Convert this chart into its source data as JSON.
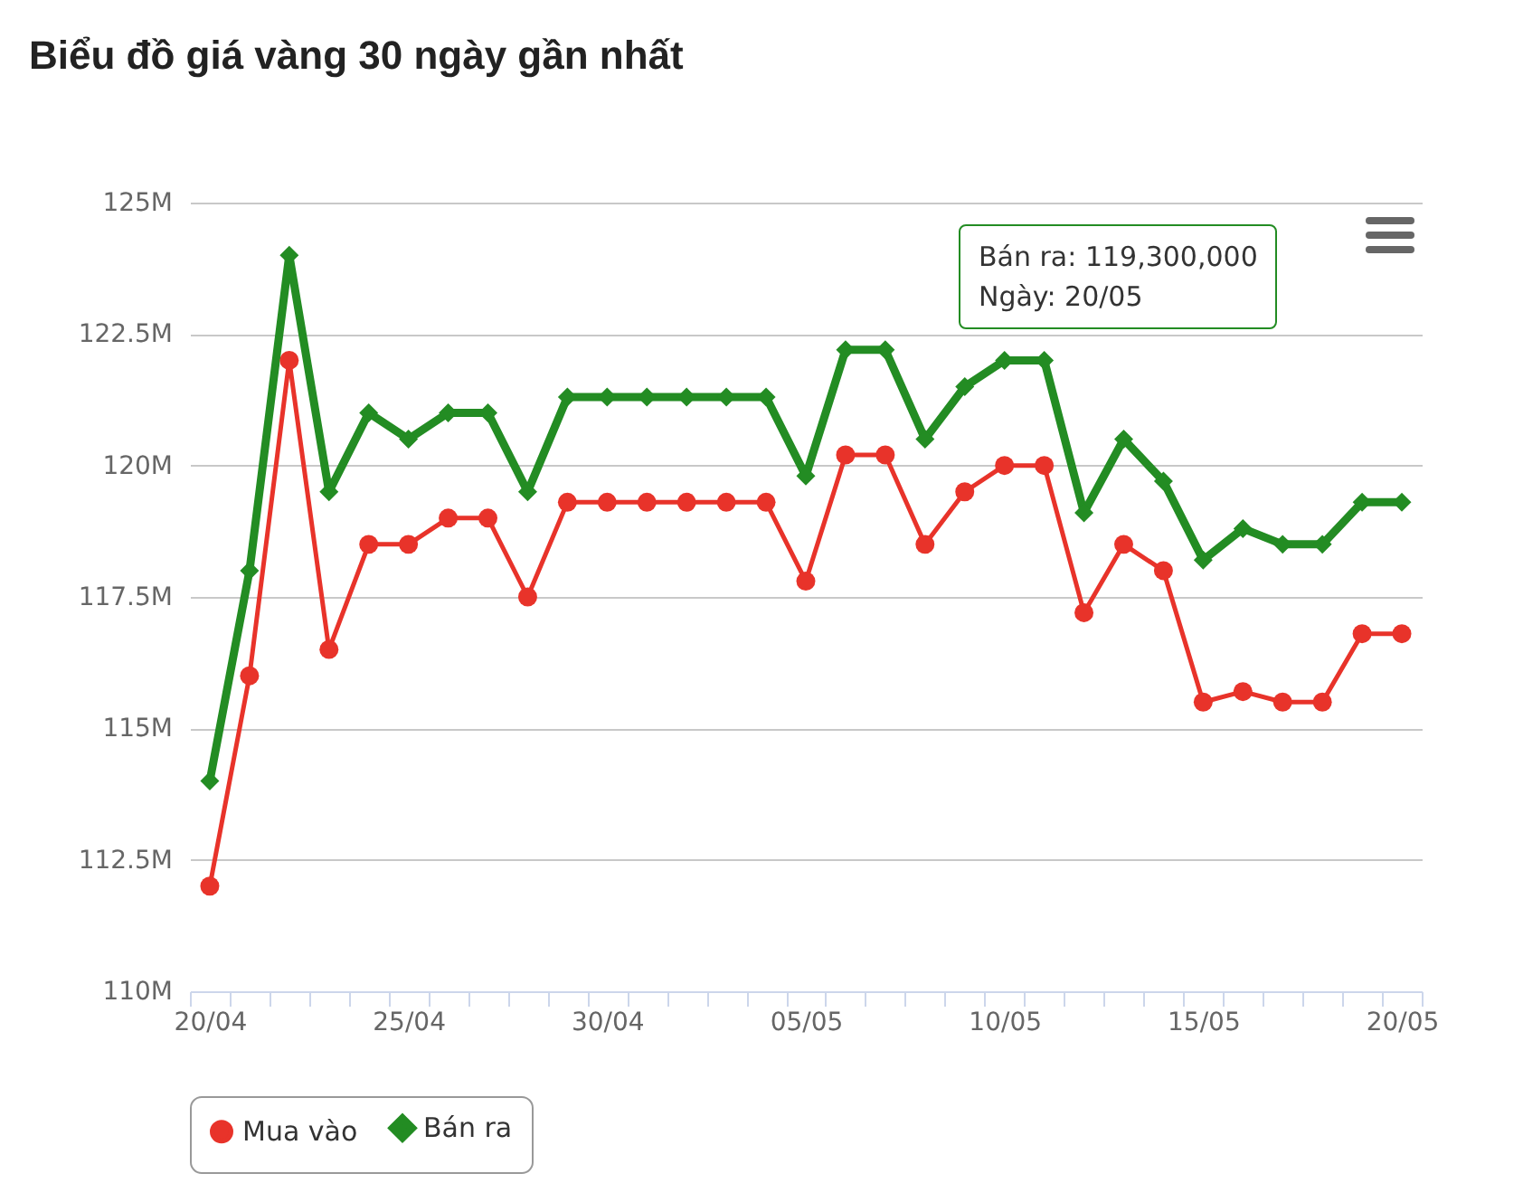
{
  "chart_data": {
    "type": "line",
    "title": "Biểu đồ giá vàng 30 ngày gần nhất",
    "categories": [
      "20/04",
      null,
      null,
      null,
      null,
      "25/04",
      null,
      null,
      null,
      null,
      "30/04",
      null,
      null,
      null,
      null,
      "05/05",
      null,
      null,
      null,
      null,
      "10/05",
      null,
      null,
      null,
      null,
      "15/05",
      null,
      null,
      null,
      null,
      "20/05"
    ],
    "series": [
      {
        "name": "Mua vào",
        "color": "#e8332a",
        "marker": "circle",
        "values": [
          112.0,
          116.0,
          122.0,
          116.5,
          118.5,
          118.5,
          119.0,
          119.0,
          117.5,
          119.3,
          119.3,
          119.3,
          119.3,
          119.3,
          119.3,
          117.8,
          120.2,
          120.2,
          118.5,
          119.5,
          120.0,
          120.0,
          117.2,
          118.5,
          118.0,
          115.5,
          115.7,
          115.5,
          115.5,
          116.8,
          116.8
        ]
      },
      {
        "name": "Bán ra",
        "color": "#238c23",
        "marker": "diamond",
        "values": [
          114.0,
          118.0,
          124.0,
          119.5,
          121.0,
          120.5,
          121.0,
          121.0,
          119.5,
          121.3,
          121.3,
          121.3,
          121.3,
          121.3,
          121.3,
          119.8,
          122.2,
          122.2,
          120.5,
          121.5,
          122.0,
          122.0,
          119.1,
          120.5,
          119.7,
          118.2,
          118.8,
          118.5,
          118.5,
          119.3,
          119.3
        ]
      }
    ],
    "ylim": [
      110,
      125
    ],
    "yticks": [
      {
        "value": 110,
        "label": "110M"
      },
      {
        "value": 112.5,
        "label": "112.5M"
      },
      {
        "value": 115,
        "label": "115M"
      },
      {
        "value": 117.5,
        "label": "117.5M"
      },
      {
        "value": 120,
        "label": "120M"
      },
      {
        "value": 122.5,
        "label": "122.5M"
      },
      {
        "value": 125,
        "label": "125M"
      }
    ],
    "grid": "y",
    "legend": "bottom",
    "annotations": [
      "Bán ra: 119,300,000\nNgày: 20/05"
    ]
  }
}
